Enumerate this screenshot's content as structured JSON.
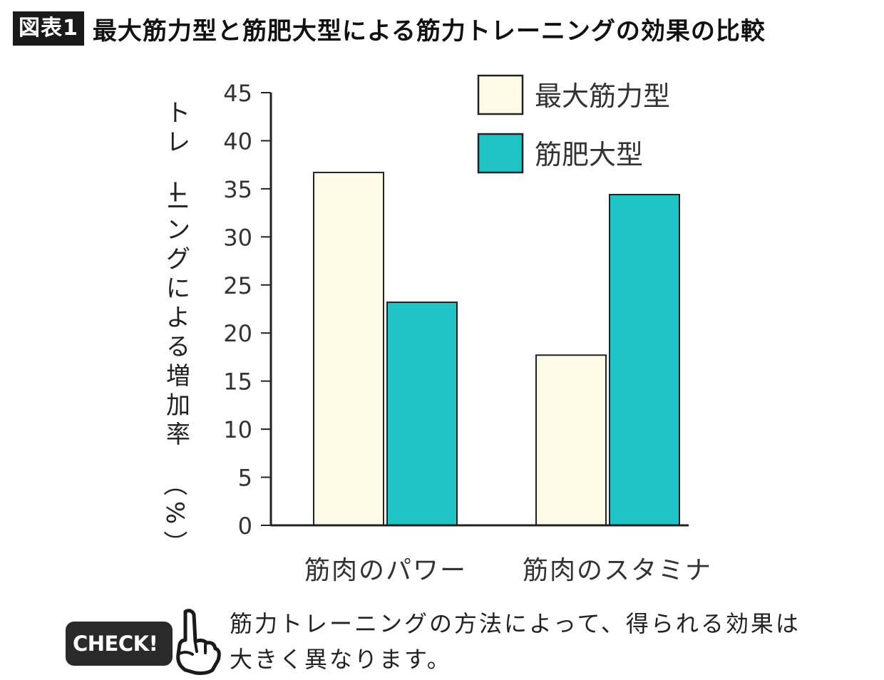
{
  "header": {
    "tag": "図表1",
    "title": "最大筋力型と筋肥大型による筋力トレーニングの効果の比較"
  },
  "chart_data": {
    "type": "bar",
    "categories": [
      "筋肉のパワー",
      "筋肉のスタミナ"
    ],
    "series": [
      {
        "name": "最大筋力型",
        "values": [
          36.7,
          17.7
        ],
        "color": "#fefbe6"
      },
      {
        "name": "筋肥大型",
        "values": [
          23.2,
          34.4
        ],
        "color": "#1fc4c6"
      }
    ],
    "ylabel": "トレーニングによる増加率（%）",
    "ylim": [
      0,
      45
    ],
    "yticks": [
      0,
      5,
      10,
      15,
      20,
      25,
      30,
      35,
      40,
      45
    ],
    "grid": false,
    "legend_position": "top-right"
  },
  "note": {
    "badge": "CHECK!",
    "line1": "筋力トレーニングの方法によって、得られる効果は",
    "line2": "大きく異なります。"
  }
}
